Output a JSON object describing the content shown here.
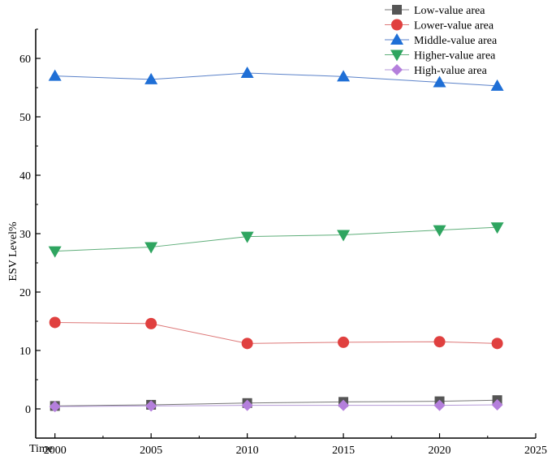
{
  "chart_data": {
    "type": "line",
    "title": "",
    "xlabel": "Time",
    "ylabel": "ESV Level%",
    "xlim": [
      1999,
      2025
    ],
    "ylim": [
      -5,
      65
    ],
    "x_ticks": [
      2000,
      2005,
      2010,
      2015,
      2020,
      2025
    ],
    "y_ticks": [
      0,
      10,
      20,
      30,
      40,
      50,
      60
    ],
    "grid": false,
    "legend_position": "top-right",
    "x": [
      2000,
      2005,
      2010,
      2015,
      2020,
      2023
    ],
    "series": [
      {
        "name": "Low-value area",
        "marker": "square",
        "line_color": "#777777",
        "marker_color": "#555555",
        "values": [
          0.5,
          0.7,
          1.0,
          1.2,
          1.3,
          1.5
        ]
      },
      {
        "name": "Lower-value area",
        "marker": "circle",
        "line_color": "#dd7777",
        "marker_color": "#e0403f",
        "values": [
          14.8,
          14.6,
          11.2,
          11.4,
          11.5,
          11.2
        ]
      },
      {
        "name": "Middle-value area",
        "marker": "triangle-up",
        "line_color": "#5b82c9",
        "marker_color": "#1f6fd6",
        "values": [
          57.0,
          56.4,
          57.5,
          56.9,
          55.9,
          55.3
        ]
      },
      {
        "name": "Higher-value area",
        "marker": "triangle-down",
        "line_color": "#5fae7a",
        "marker_color": "#2fa560",
        "values": [
          27.0,
          27.7,
          29.5,
          29.8,
          30.6,
          31.1
        ]
      },
      {
        "name": "High-value area",
        "marker": "diamond",
        "line_color": "#b59ad8",
        "marker_color": "#b47fdc",
        "values": [
          0.4,
          0.5,
          0.6,
          0.6,
          0.6,
          0.7
        ]
      }
    ]
  }
}
